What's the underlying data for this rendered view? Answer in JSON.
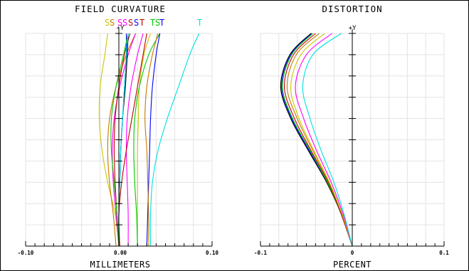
{
  "chart_data": [
    {
      "type": "line",
      "title": "FIELD CURVATURE",
      "xlabel": "MILLIMETERS",
      "axis_marker": "+Y",
      "xlim": [
        -0.1,
        0.1
      ],
      "ylim": [
        0,
        1
      ],
      "x_tick_labels": [
        "-0.10",
        "0.00",
        "0.10"
      ],
      "grid": true,
      "legend_placement": "top",
      "legend": [
        {
          "text": "S",
          "color": "#c8c800"
        },
        {
          "text": "S",
          "color": "#c87800"
        },
        {
          "text": "S",
          "color": "#ff00ff"
        },
        {
          "text": "S",
          "color": "#ff00ff"
        },
        {
          "text": "S",
          "color": "#c00000"
        },
        {
          "text": "S",
          "color": "#0000ff"
        },
        {
          "text": "T",
          "color": "#c00000"
        },
        {
          "text": "T",
          "color": "#00c800"
        },
        {
          "text": "S",
          "color": "#00c800"
        },
        {
          "text": "T",
          "color": "#0000ff"
        },
        {
          "text": "T",
          "color": "#00e0e0"
        }
      ],
      "series": [
        {
          "color": "#c8c800",
          "x": [
            0.0,
            -0.004,
            -0.012,
            -0.018,
            -0.021,
            -0.02,
            -0.015,
            -0.012
          ],
          "y": [
            0,
            0.15,
            0.3,
            0.45,
            0.6,
            0.75,
            0.9,
            1.0
          ]
        },
        {
          "color": "#c87800",
          "x": [
            -0.003,
            -0.006,
            -0.01,
            -0.012,
            -0.01,
            -0.003,
            0.008,
            0.018
          ],
          "y": [
            0,
            0.15,
            0.3,
            0.45,
            0.6,
            0.75,
            0.9,
            1.0
          ]
        },
        {
          "color": "#ff00ff",
          "x": [
            0.0,
            -0.003,
            -0.006,
            -0.007,
            -0.005,
            0.001,
            0.01,
            0.018
          ],
          "y": [
            0,
            0.15,
            0.3,
            0.45,
            0.6,
            0.75,
            0.9,
            1.0
          ]
        },
        {
          "color": "#c00000",
          "x": [
            0.0,
            -0.002,
            -0.004,
            -0.005,
            -0.004,
            0.0,
            0.006,
            0.012
          ],
          "y": [
            0,
            0.15,
            0.3,
            0.45,
            0.6,
            0.75,
            0.9,
            1.0
          ]
        },
        {
          "color": "#000000",
          "x": [
            0.0,
            0.0,
            0.001,
            0.002,
            0.004,
            0.007,
            0.009,
            0.01
          ],
          "y": [
            0,
            0.15,
            0.3,
            0.45,
            0.6,
            0.75,
            0.9,
            1.0
          ]
        },
        {
          "color": "#0000ff",
          "x": [
            0.0,
            0.0,
            0.001,
            0.002,
            0.004,
            0.006,
            0.008,
            0.008
          ],
          "y": [
            0,
            0.15,
            0.3,
            0.45,
            0.6,
            0.75,
            0.9,
            1.0
          ]
        },
        {
          "color": "#00c800",
          "x": [
            0.0,
            -0.002,
            -0.005,
            -0.008,
            -0.008,
            -0.003,
            0.005,
            0.01
          ],
          "y": [
            0,
            0.15,
            0.3,
            0.45,
            0.6,
            0.75,
            0.9,
            1.0
          ]
        },
        {
          "color": "#00e0e0",
          "x": [
            0.0,
            0.0,
            0.001,
            0.002,
            0.004,
            0.006,
            0.008,
            0.01
          ],
          "y": [
            0,
            0.15,
            0.3,
            0.45,
            0.6,
            0.75,
            0.9,
            1.0
          ]
        },
        {
          "color": "#c8c800",
          "x": [
            0.02,
            0.02,
            0.02,
            0.02,
            0.021,
            0.022,
            0.027,
            0.034
          ],
          "y": [
            0,
            0.15,
            0.3,
            0.45,
            0.6,
            0.75,
            0.9,
            1.0
          ]
        },
        {
          "color": "#00c800",
          "x": [
            0.02,
            0.019,
            0.017,
            0.016,
            0.017,
            0.022,
            0.032,
            0.044
          ],
          "y": [
            0,
            0.15,
            0.3,
            0.45,
            0.6,
            0.75,
            0.9,
            1.0
          ]
        },
        {
          "color": "#0000ff",
          "x": [
            0.03,
            0.031,
            0.032,
            0.033,
            0.034,
            0.036,
            0.04,
            0.044
          ],
          "y": [
            0,
            0.15,
            0.3,
            0.45,
            0.6,
            0.75,
            0.9,
            1.0
          ]
        },
        {
          "color": "#c87800",
          "x": [
            0.032,
            0.032,
            0.031,
            0.03,
            0.028,
            0.03,
            0.036,
            0.042
          ],
          "y": [
            0,
            0.15,
            0.3,
            0.45,
            0.6,
            0.75,
            0.9,
            1.0
          ]
        },
        {
          "color": "#ff00ff",
          "x": [
            0.01,
            0.01,
            0.009,
            0.008,
            0.009,
            0.013,
            0.02,
            0.026
          ],
          "y": [
            0,
            0.15,
            0.3,
            0.45,
            0.6,
            0.75,
            0.9,
            1.0
          ]
        },
        {
          "color": "#c00000",
          "x": [
            0.001,
            0.0,
            0.003,
            0.008,
            0.014,
            0.02,
            0.026,
            0.03
          ],
          "y": [
            0,
            0.15,
            0.3,
            0.45,
            0.6,
            0.75,
            0.9,
            1.0
          ]
        },
        {
          "color": "#00e0e0",
          "x": [
            0.034,
            0.034,
            0.036,
            0.042,
            0.052,
            0.064,
            0.076,
            0.086
          ],
          "y": [
            0,
            0.15,
            0.3,
            0.45,
            0.6,
            0.75,
            0.9,
            1.0
          ]
        }
      ]
    },
    {
      "type": "line",
      "title": "DISTORTION",
      "xlabel": "PERCENT",
      "axis_marker": "+Y",
      "xlim": [
        -0.1,
        0.1
      ],
      "ylim": [
        0,
        1
      ],
      "x_tick_labels": [
        "-0.1",
        "0",
        "0.1"
      ],
      "grid": true,
      "series": [
        {
          "color": "#000000",
          "x": [
            0.0,
            -0.012,
            -0.028,
            -0.048,
            -0.067,
            -0.078,
            -0.068,
            -0.045
          ],
          "y": [
            0,
            0.15,
            0.3,
            0.45,
            0.6,
            0.75,
            0.9,
            1.0
          ]
        },
        {
          "color": "#0000ff",
          "x": [
            0.0,
            -0.012,
            -0.027,
            -0.047,
            -0.066,
            -0.077,
            -0.067,
            -0.044
          ],
          "y": [
            0,
            0.15,
            0.3,
            0.45,
            0.6,
            0.75,
            0.9,
            1.0
          ]
        },
        {
          "color": "#00c800",
          "x": [
            0.0,
            -0.012,
            -0.027,
            -0.046,
            -0.065,
            -0.076,
            -0.066,
            -0.043
          ],
          "y": [
            0,
            0.15,
            0.3,
            0.45,
            0.6,
            0.75,
            0.9,
            1.0
          ]
        },
        {
          "color": "#c00000",
          "x": [
            0.0,
            -0.012,
            -0.026,
            -0.045,
            -0.063,
            -0.074,
            -0.064,
            -0.04
          ],
          "y": [
            0,
            0.15,
            0.3,
            0.45,
            0.6,
            0.75,
            0.9,
            1.0
          ]
        },
        {
          "color": "#c87800",
          "x": [
            0.0,
            -0.011,
            -0.025,
            -0.043,
            -0.06,
            -0.071,
            -0.061,
            -0.036
          ],
          "y": [
            0,
            0.15,
            0.3,
            0.45,
            0.6,
            0.75,
            0.9,
            1.0
          ]
        },
        {
          "color": "#c8c800",
          "x": [
            0.0,
            -0.011,
            -0.025,
            -0.042,
            -0.058,
            -0.067,
            -0.056,
            -0.03
          ],
          "y": [
            0,
            0.15,
            0.3,
            0.45,
            0.6,
            0.75,
            0.9,
            1.0
          ]
        },
        {
          "color": "#ff00ff",
          "x": [
            0.0,
            -0.01,
            -0.023,
            -0.039,
            -0.053,
            -0.062,
            -0.05,
            -0.022
          ],
          "y": [
            0,
            0.15,
            0.3,
            0.45,
            0.6,
            0.75,
            0.9,
            1.0
          ]
        },
        {
          "color": "#00e0e0",
          "x": [
            0.0,
            -0.009,
            -0.02,
            -0.034,
            -0.046,
            -0.054,
            -0.043,
            -0.012
          ],
          "y": [
            0,
            0.15,
            0.3,
            0.45,
            0.6,
            0.75,
            0.9,
            1.0
          ]
        }
      ]
    }
  ]
}
